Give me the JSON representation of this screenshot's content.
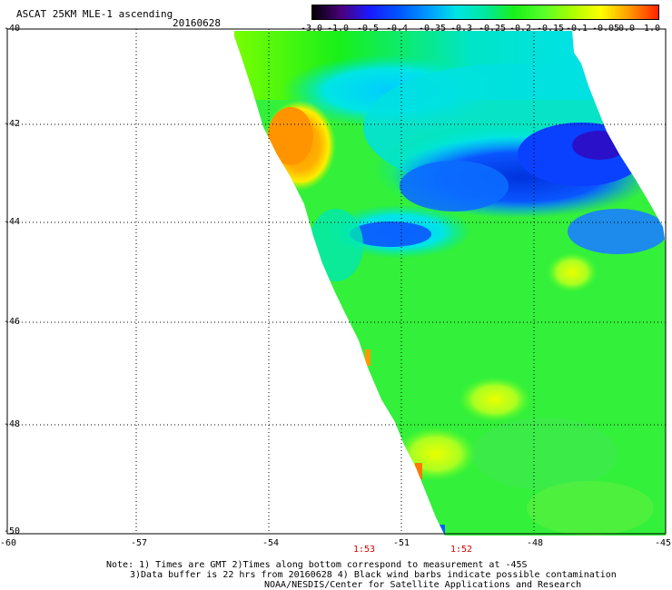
{
  "header": {
    "title": "ASCAT 25KM MLE-1 ascending",
    "date": "20160628"
  },
  "colorbar": {
    "labels": [
      "-3.0",
      "-1.0",
      "-0.5",
      "-0.4",
      "-0.35",
      "-0.3",
      "-0.25",
      "-0.2",
      "-0.15",
      "-0.1",
      "-0.05",
      "0.0",
      "1.0"
    ],
    "colors": [
      "#000000",
      "#4b007d",
      "#1a1aff",
      "#0055ff",
      "#0099ff",
      "#00e5e5",
      "#00e8a0",
      "#19f019",
      "#55ff2a",
      "#aaff00",
      "#ffff00",
      "#ff9900",
      "#ff2200"
    ]
  },
  "axes": {
    "x_ticks": [
      "-60",
      "-57",
      "-54",
      "-51",
      "-48",
      "-45"
    ],
    "y_ticks": [
      "-40",
      "-42",
      "-44",
      "-46",
      "-48",
      "-50"
    ]
  },
  "times": [
    "1:53",
    "1:52"
  ],
  "notes": [
    "Note: 1) Times are GMT 2)Times along bottom correspond to measurement at -45S",
    "3)Data buffer is 22 hrs from 20160628 4) Black wind barbs indicate possible contamination",
    "NOAA/NESDIS/Center for Satellite Applications and Research"
  ]
}
